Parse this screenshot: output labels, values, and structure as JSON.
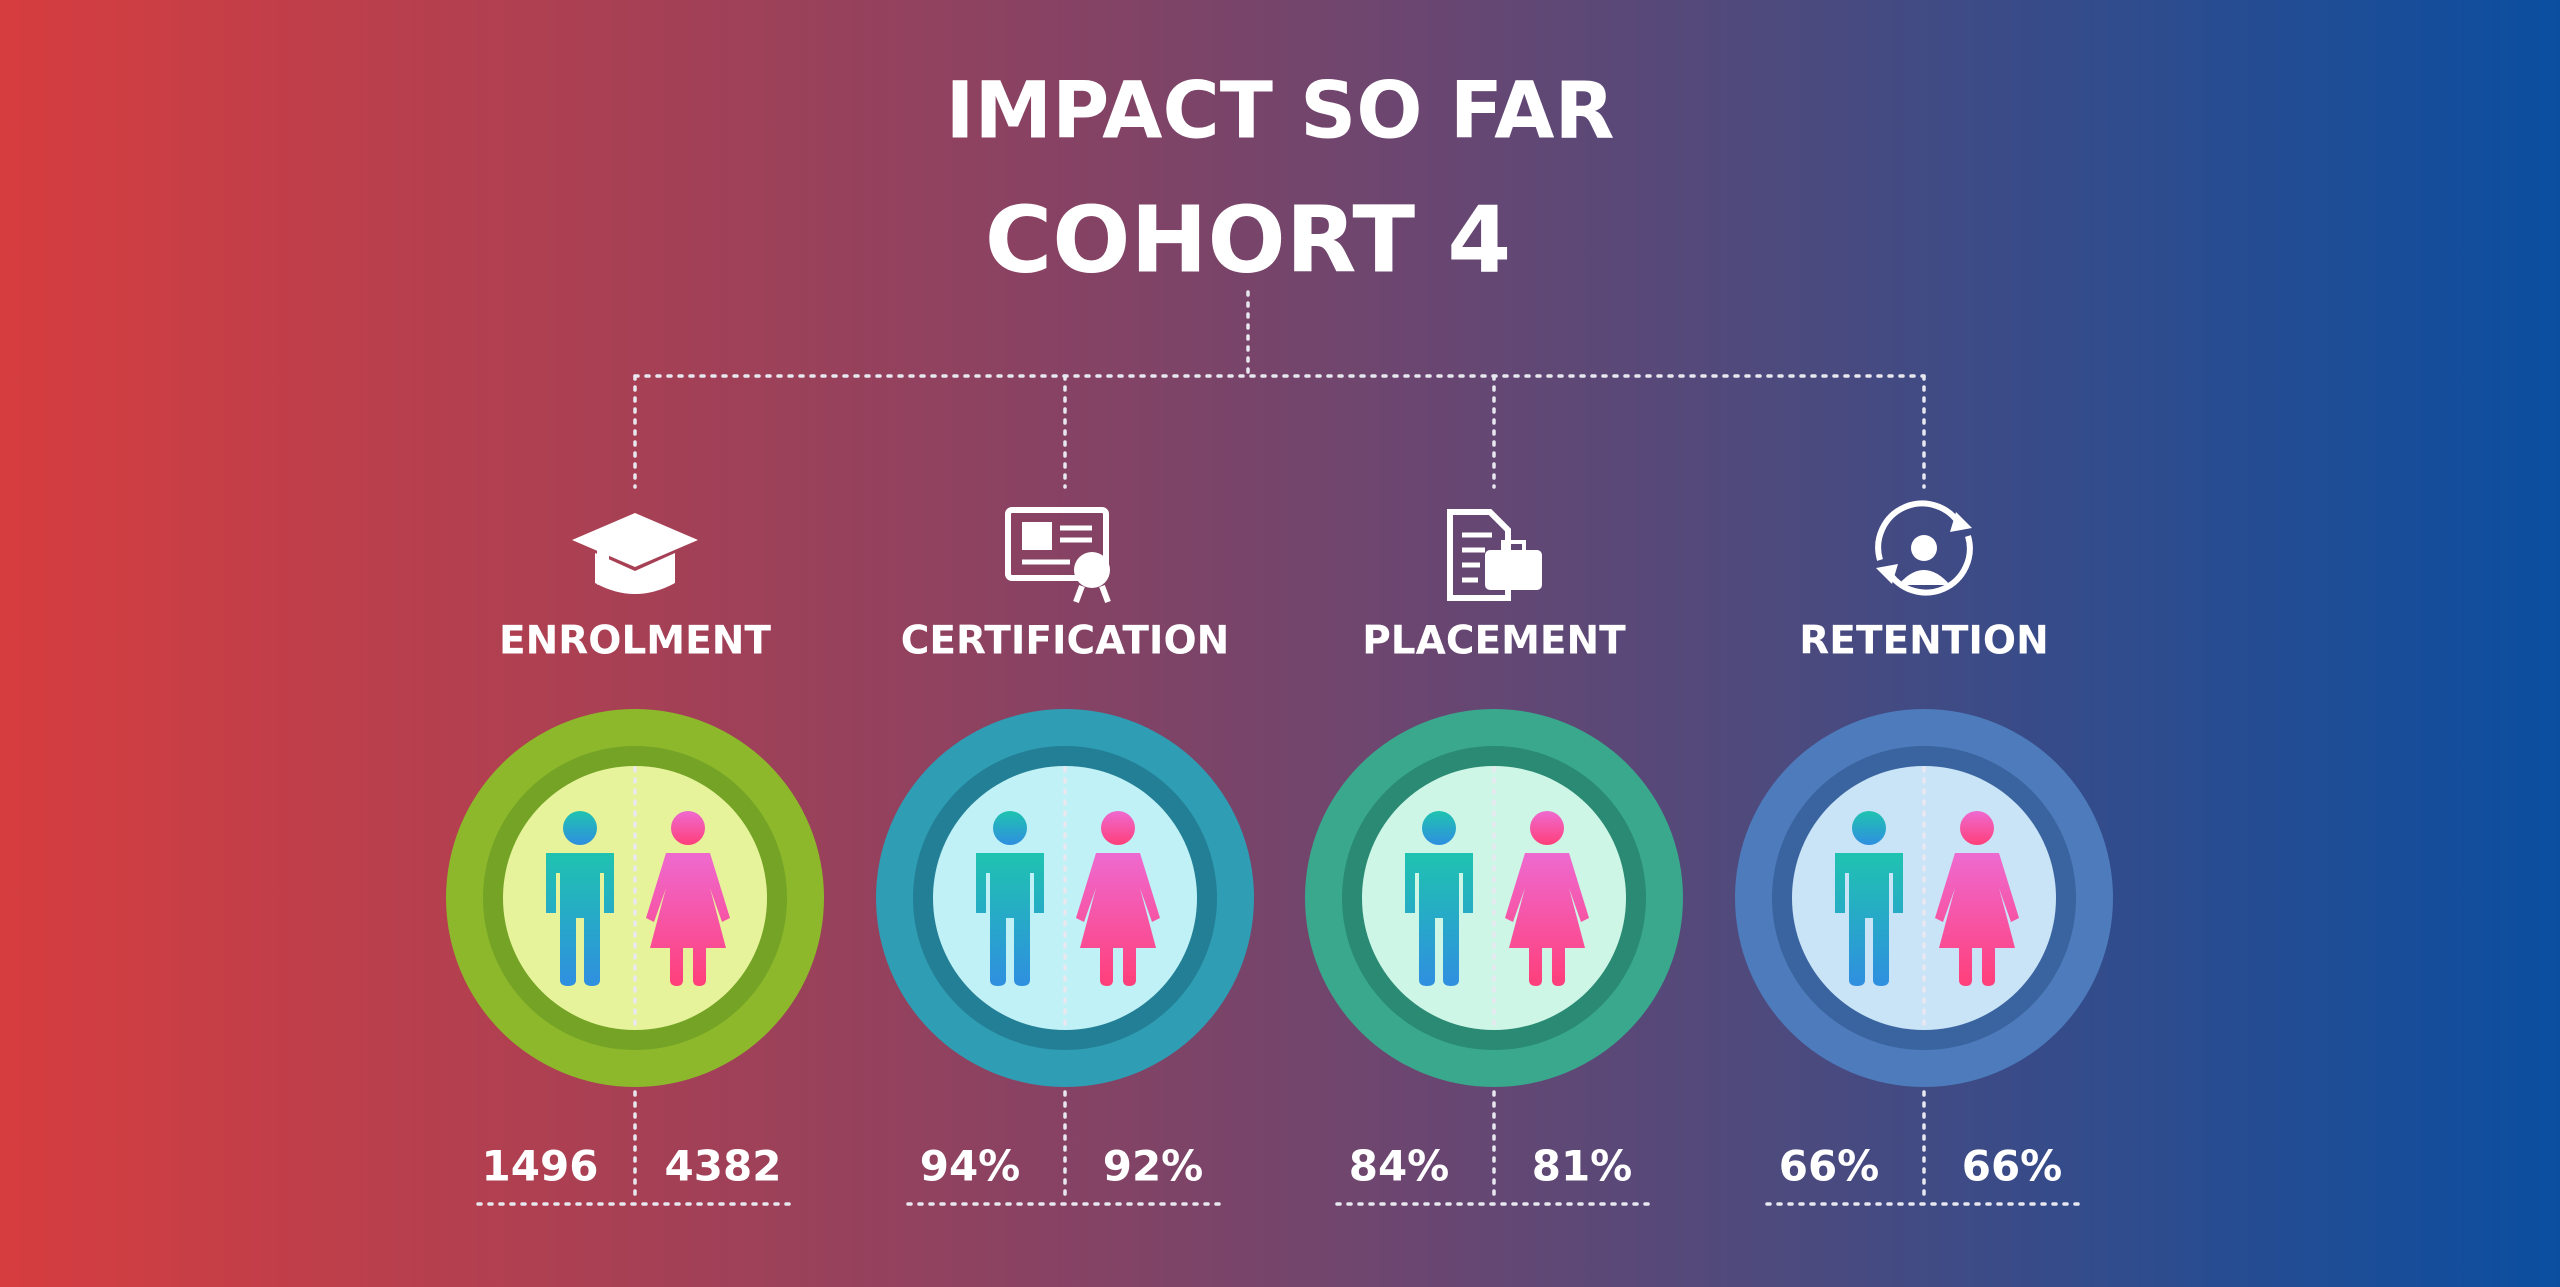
{
  "header": {
    "title": "IMPACT SO FAR",
    "subtitle": "COHORT 4"
  },
  "items": [
    {
      "label": "ENROLMENT",
      "left": "1496",
      "right": "4382"
    },
    {
      "label": "CERTIFICATION",
      "left": "94%",
      "right": "92%"
    },
    {
      "label": "PLACEMENT",
      "left": "84%",
      "right": "81%"
    },
    {
      "label": "RETENTION",
      "left": "66%",
      "right": "66%"
    }
  ]
}
